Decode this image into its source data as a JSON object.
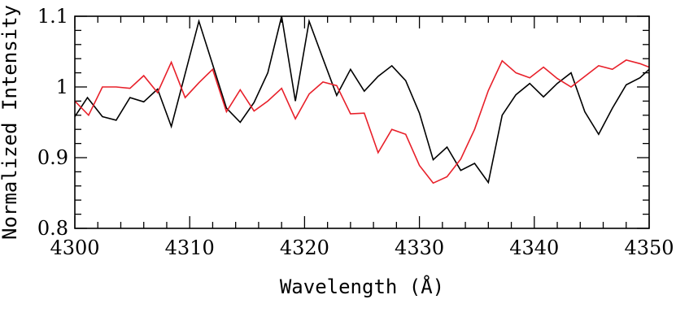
{
  "chart_data": {
    "type": "line",
    "title": "",
    "xlabel": "Wavelength (Å)",
    "ylabel": "Normalized Intensity",
    "xlim": [
      4300,
      4350
    ],
    "ylim": [
      0.8,
      1.1
    ],
    "grid": false,
    "x_ticks": [
      4300,
      4310,
      4320,
      4330,
      4340,
      4350
    ],
    "y_ticks": [
      0.8,
      0.9,
      1,
      1.1
    ],
    "x_tick_labels": [
      "4300",
      "4310",
      "4320",
      "4330",
      "4340",
      "4350"
    ],
    "y_tick_labels": [
      "0.8",
      "0.9",
      "1",
      "1.1"
    ],
    "series": [
      {
        "color": "#000000",
        "x": [
          4300,
          4301.1,
          4302.4,
          4303.6,
          4304.8,
          4306,
          4307.2,
          4308.4,
          4310.8,
          4313.2,
          4314.4,
          4315.6,
          4316.8,
          4318,
          4319.2,
          4320.4,
          4321.6,
          4322.8,
          4324,
          4325.2,
          4326.4,
          4327.6,
          4328.8,
          4330,
          4331.2,
          4332.4,
          4333.6,
          4334.8,
          4336,
          4337.2,
          4338.4,
          4339.6,
          4340.8,
          4342,
          4343.2,
          4344.4,
          4345.6,
          4346.8,
          4348,
          4349.2,
          4350
        ],
        "y": [
          0.958,
          0.985,
          0.958,
          0.953,
          0.985,
          0.979,
          0.997,
          0.944,
          1.093,
          0.97,
          0.95,
          0.978,
          1.02,
          1.1,
          0.98,
          1.093,
          1.04,
          0.988,
          1.025,
          0.994,
          1.015,
          1.03,
          1.009,
          0.963,
          0.897,
          0.915,
          0.882,
          0.892,
          0.865,
          0.96,
          0.989,
          1.005,
          0.986,
          1.005,
          1.02,
          0.965,
          0.933,
          0.97,
          1.003,
          1.013,
          1.025
        ]
      },
      {
        "color": "#e8202a",
        "x": [
          4300,
          4301.2,
          4302.4,
          4303.6,
          4304.8,
          4306,
          4307.2,
          4308.4,
          4309.6,
          4310.8,
          4312,
          4313.2,
          4314.4,
          4315.6,
          4316.8,
          4318,
          4319.2,
          4320.4,
          4321.6,
          4322.8,
          4324,
          4325.2,
          4326.4,
          4327.6,
          4328.8,
          4330,
          4331.2,
          4332.4,
          4333.6,
          4334.8,
          4336,
          4337.2,
          4338.4,
          4339.6,
          4340.8,
          4342,
          4343.2,
          4344.4,
          4345.6,
          4346.8,
          4348,
          4349.2,
          4350
        ],
        "y": [
          0.98,
          0.96,
          1,
          1,
          0.998,
          1.016,
          0.992,
          1.035,
          0.985,
          1.006,
          1.025,
          0.965,
          0.996,
          0.966,
          0.98,
          0.998,
          0.955,
          0.99,
          1.007,
          1.002,
          0.962,
          0.963,
          0.907,
          0.94,
          0.933,
          0.889,
          0.864,
          0.873,
          0.898,
          0.94,
          0.995,
          1.037,
          1.02,
          1.013,
          1.028,
          1.012,
          1,
          1.015,
          1.03,
          1.025,
          1.038,
          1.033,
          1.028
        ]
      }
    ]
  }
}
